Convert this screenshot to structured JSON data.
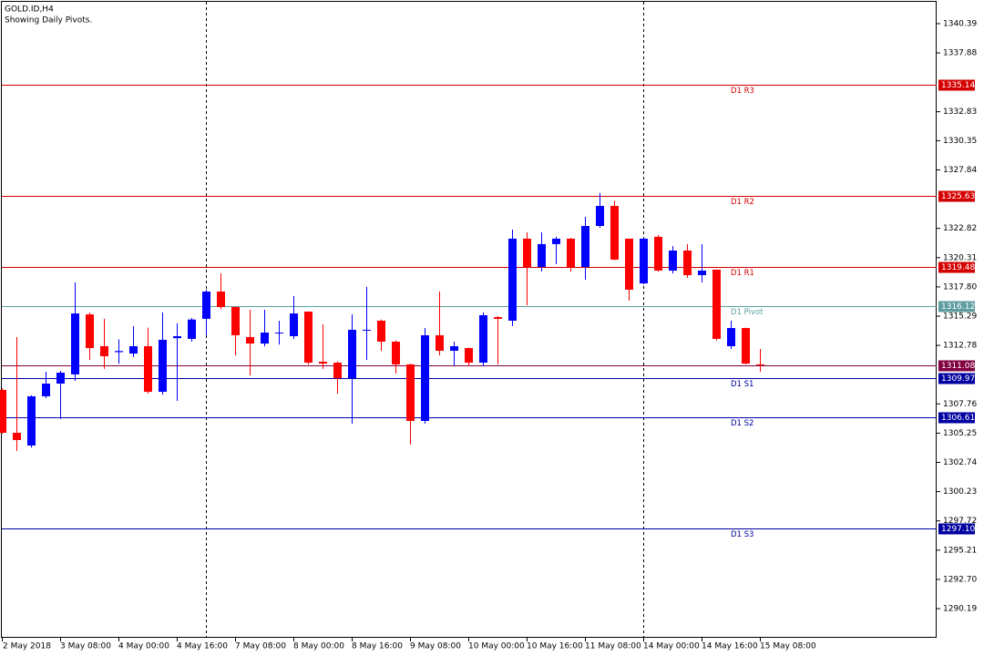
{
  "chart_data": {
    "type": "candlestick",
    "title": "GOLD.ID,H4",
    "subtitle": "Showing Daily Pivots.",
    "categories": [
      "2 May 2018",
      null,
      null,
      null,
      "3 May 08:00",
      null,
      null,
      null,
      "4 May 00:00",
      null,
      null,
      null,
      "4 May 16:00",
      null,
      null,
      null,
      "7 May 08:00",
      null,
      null,
      null,
      "8 May 00:00",
      null,
      null,
      null,
      "8 May 16:00",
      null,
      null,
      null,
      "9 May 08:00",
      null,
      null,
      null,
      "10 May 00:00",
      null,
      null,
      null,
      "10 May 16:00",
      null,
      null,
      null,
      "11 May 08:00",
      null,
      null,
      null,
      "14 May 00:00",
      null,
      null,
      null,
      "14 May 16:00",
      null,
      null,
      null,
      "15 May 08:00"
    ],
    "open": [
      1308.96,
      1305.28,
      1304.19,
      1308.41,
      1309.5,
      1310.29,
      1315.44,
      1312.71,
      1312.2,
      1312.08,
      1312.71,
      1308.8,
      1313.4,
      1313.34,
      1315.06,
      1317.4,
      1316.07,
      1313.49,
      1312.94,
      1313.8,
      1313.57,
      1315.68,
      1311.38,
      1311.3,
      1309.97,
      1314.05,
      1314.9,
      1313.1,
      1311.15,
      1306.3,
      1313.65,
      1312.32,
      1312.55,
      1311.3,
      1315.21,
      1314.9,
      1321.94,
      1319.51,
      1321.47,
      1321.94,
      1319.51,
      1323.03,
      1324.75,
      1321.94,
      1318.1,
      1322.1,
      1319.2,
      1320.92,
      1318.81,
      1319.28,
      1312.71,
      1314.27,
      1311.15
    ],
    "high": [
      1309.1,
      1313.49,
      1308.5,
      1310.52,
      1310.6,
      1318.18,
      1315.6,
      1315.06,
      1313.3,
      1314.43,
      1314.3,
      1315.6,
      1314.67,
      1315.13,
      1317.56,
      1318.96,
      1316.1,
      1315.84,
      1315.84,
      1314.9,
      1317.01,
      1315.7,
      1314.59,
      1311.4,
      1315.45,
      1317.8,
      1315.0,
      1313.2,
      1311.2,
      1314.27,
      1317.4,
      1313.1,
      1312.6,
      1315.6,
      1315.29,
      1322.72,
      1322.48,
      1322.48,
      1322.1,
      1322.0,
      1323.81,
      1325.85,
      1325.2,
      1321.94,
      1322.0,
      1322.25,
      1321.3,
      1321.47,
      1321.47,
      1319.3,
      1314.9,
      1314.3,
      1312.47
    ],
    "low": [
      1305.2,
      1303.72,
      1304.0,
      1308.25,
      1306.46,
      1309.74,
      1311.54,
      1310.76,
      1311.2,
      1311.77,
      1308.64,
      1308.56,
      1308.02,
      1313.1,
      1313.65,
      1315.9,
      1311.93,
      1310.21,
      1312.7,
      1312.86,
      1313.33,
      1311.15,
      1310.76,
      1308.64,
      1306.06,
      1311.54,
      1312.32,
      1310.37,
      1304.27,
      1306.06,
      1311.93,
      1311.0,
      1310.99,
      1310.99,
      1311.15,
      1314.43,
      1316.23,
      1319.12,
      1319.75,
      1319.12,
      1318.42,
      1322.87,
      1320.1,
      1316.62,
      1318.03,
      1319.1,
      1318.96,
      1318.57,
      1318.18,
      1313.2,
      1312.47,
      1311.15,
      1310.52
    ],
    "close": [
      1305.28,
      1304.66,
      1308.41,
      1309.5,
      1310.44,
      1315.52,
      1312.55,
      1311.85,
      1312.3,
      1312.71,
      1308.8,
      1313.26,
      1313.57,
      1315.0,
      1317.4,
      1316.07,
      1313.65,
      1312.94,
      1313.88,
      1313.88,
      1315.52,
      1311.3,
      1311.22,
      1309.97,
      1314.12,
      1314.12,
      1313.1,
      1311.15,
      1306.3,
      1313.65,
      1312.32,
      1312.71,
      1311.3,
      1315.37,
      1315.06,
      1321.94,
      1319.51,
      1321.47,
      1321.94,
      1319.51,
      1323.03,
      1324.75,
      1320.14,
      1317.56,
      1321.94,
      1319.2,
      1320.92,
      1318.81,
      1319.2,
      1313.34,
      1314.27,
      1311.22,
      1311.08
    ],
    "up_color": "#0000ff",
    "down_color": "#ff0000",
    "pivots": [
      {
        "name": "D1 R3",
        "value": 1335.14,
        "color": "#d40000"
      },
      {
        "name": "D1 R2",
        "value": 1325.63,
        "color": "#d40000"
      },
      {
        "name": "D1 R1",
        "value": 1319.48,
        "color": "#d40000"
      },
      {
        "name": "D1 Pivot",
        "value": 1316.12,
        "color": "#5f9ea0"
      },
      {
        "name": "D1 S1",
        "value": 1309.97,
        "color": "#0000a0"
      },
      {
        "name": "D1 S2",
        "value": 1306.61,
        "color": "#0000a0"
      },
      {
        "name": "D1 S3",
        "value": 1297.1,
        "value_label": "1297.10",
        "color": "#0000a0"
      }
    ],
    "last_price": 1311.08,
    "last_price_color": "#800040",
    "ylim": [
      1287.69,
      1342.42
    ],
    "yticks": [
      1340.39,
      1337.88,
      1332.83,
      1330.35,
      1327.84,
      1322.82,
      1320.31,
      {
        "value": 1317.8,
        "label": "1317.80"
      },
      1315.29,
      1312.78,
      1307.76,
      1305.25,
      1302.74,
      1300.23,
      1297.72,
      1295.21,
      {
        "value": 1292.7,
        "label": "1292.70"
      },
      1290.19
    ]
  }
}
